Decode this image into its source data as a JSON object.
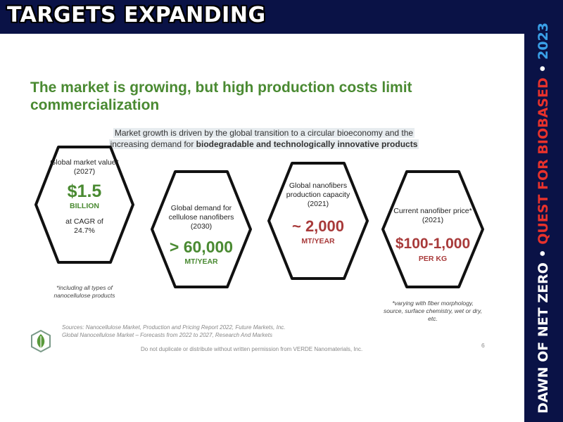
{
  "banner": {
    "title": "TARGETS EXPANDING"
  },
  "sidebar": {
    "part1": "DAWN OF NET ZERO",
    "sep1": " • ",
    "part2": "QUEST FOR BIOBASED",
    "sep2": " • ",
    "part3": "2023",
    "colors": {
      "part1": "#ffffff",
      "part2": "#e8322c",
      "part3": "#3aa0e8"
    }
  },
  "slide": {
    "headline_line1": "The market is growing, but high production costs limit",
    "headline_line2": "commercialization",
    "subhead_line1": "Market growth is driven by the global transition to a circular bioeconomy and the",
    "subhead_line2_plain": "increasing demand for ",
    "subhead_line2_bold": "biodegradable and technologically innovative products",
    "hexagons": [
      {
        "label_line1": "Global market value*",
        "label_line2": "(2027)",
        "value": "$1.5",
        "unit": "BILLION",
        "extra_line1": "at CAGR of",
        "extra_line2": "24.7%"
      },
      {
        "label_line1": "Global demand for",
        "label_line2": "cellulose nanofibers",
        "label_line3": "(2030)",
        "value": "> 60,000",
        "unit": "MT/YEAR"
      },
      {
        "label_line1": "Global nanofibers",
        "label_line2": "production capacity",
        "label_line3": "(2021)",
        "value": "~ 2,000",
        "unit": "MT/YEAR"
      },
      {
        "label_line1": "Current nanofiber price*",
        "label_line2": "(2021)",
        "value": "$100-1,000",
        "unit": "PER KG"
      }
    ],
    "note_left_line1": "*including all types of",
    "note_left_line2": "nanocellulose products",
    "note_right_line1": "*varying with fiber morphology,",
    "note_right_line2": "source, surface chemistry, wet or dry,",
    "note_right_line3": "etc.",
    "sources_line1": "Sources: Nanocellulose Market, Production and Pricing Report 2022, Future Markets, Inc.",
    "sources_line2": "Global Nanocellulose Market – Forecasts from 2022 to 2027, Research And Markets",
    "page_number": "6",
    "disclaimer": "Do not duplicate or distribute without written permission from VERDE Nanomaterials, Inc."
  },
  "colors": {
    "navy": "#0a1246",
    "green": "#4a8a32",
    "red": "#a83a3a"
  }
}
